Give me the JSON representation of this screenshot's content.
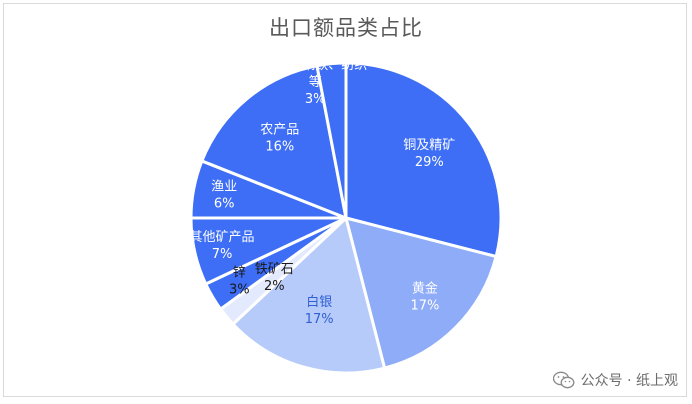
{
  "chart_data": {
    "type": "pie",
    "title": "出口额品类占比",
    "slices": [
      {
        "name": "铜及精矿",
        "value": 29,
        "pct_label": "29%",
        "color": "#3d6ef5",
        "label_color": "#ffffff"
      },
      {
        "name": "黄金",
        "value": 17,
        "pct_label": "17%",
        "color": "#8eacf8",
        "label_color": "#ffffff"
      },
      {
        "name": "白银",
        "value": 17,
        "pct_label": "17%",
        "color": "#b7cbfa",
        "label_color": "#2f5fd0"
      },
      {
        "name": "铁矿石",
        "value": 2,
        "pct_label": "2%",
        "color": "#e3eafd",
        "label_color": "#1a1a1a"
      },
      {
        "name": "锌",
        "value": 3,
        "pct_label": "3%",
        "color": "#3d6ef5",
        "label_color": "#1a1a1a"
      },
      {
        "name": "其他矿产品",
        "value": 7,
        "pct_label": "7%",
        "color": "#3d6ef5",
        "label_color": "#ffffff"
      },
      {
        "name": "渔业",
        "value": 6,
        "pct_label": "6%",
        "color": "#3d6ef5",
        "label_color": "#ffffff"
      },
      {
        "name": "农产品",
        "value": 16,
        "pct_label": "16%",
        "color": "#3d6ef5",
        "label_color": "#ffffff"
      },
      {
        "name": "化工、钢铁、纺织等",
        "value": 3,
        "pct_label": "3%",
        "color": "#3d6ef5",
        "label_color": "#ffffff"
      }
    ]
  },
  "watermark": {
    "text": "公众号 · 纸上观"
  }
}
